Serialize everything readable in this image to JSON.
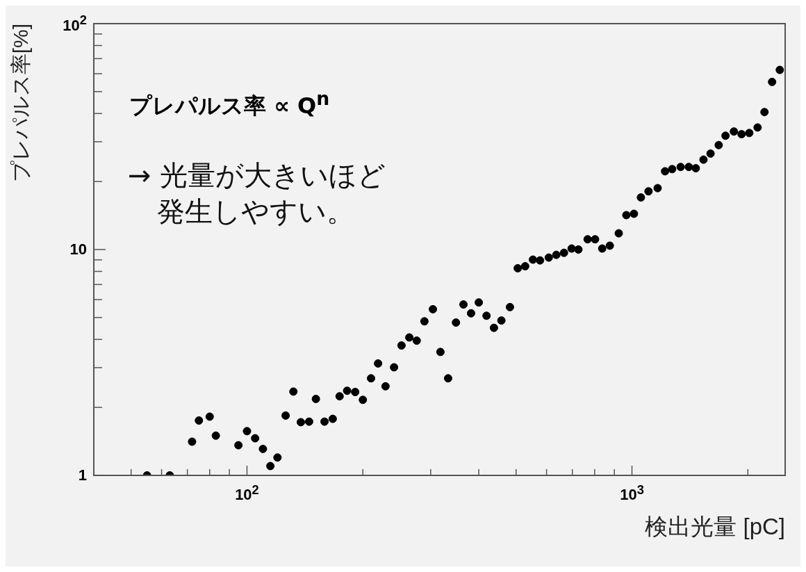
{
  "chart_data": {
    "type": "scatter",
    "xlabel": "検出光量 [pC]",
    "ylabel": "プレパルス率[%]",
    "annotations": [
      "プレパルス率 ∝ Q$^{n}$",
      "→ 光量が大きいほど発生しやすい。"
    ],
    "log": "xy",
    "grid": false,
    "legend": false,
    "marker": "circle",
    "xlim": [
      40,
      2500
    ],
    "ylim": [
      1,
      100
    ],
    "xticks": [
      {
        "value": 50,
        "label": null
      },
      {
        "value": 60,
        "label": null
      },
      {
        "value": 70,
        "label": null
      },
      {
        "value": 80,
        "label": null
      },
      {
        "value": 90,
        "label": null
      },
      {
        "value": 100,
        "label": "10$^{2}$"
      },
      {
        "value": 200,
        "label": null
      },
      {
        "value": 300,
        "label": null
      },
      {
        "value": 400,
        "label": null
      },
      {
        "value": 500,
        "label": null
      },
      {
        "value": 600,
        "label": null
      },
      {
        "value": 700,
        "label": null
      },
      {
        "value": 800,
        "label": null
      },
      {
        "value": 900,
        "label": null
      },
      {
        "value": 1000,
        "label": "10$^{3}$"
      },
      {
        "value": 2000,
        "label": null
      }
    ],
    "yticks": [
      1,
      {
        "value": 2,
        "label": null
      },
      {
        "value": 3,
        "label": null
      },
      {
        "value": 4,
        "label": null
      },
      {
        "value": 5,
        "label": null
      },
      {
        "value": 6,
        "label": null
      },
      {
        "value": 7,
        "label": null
      },
      {
        "value": 8,
        "label": null
      },
      {
        "value": 9,
        "label": null
      },
      10,
      {
        "value": 20,
        "label": null
      },
      {
        "value": 30,
        "label": null
      },
      {
        "value": 40,
        "label": null
      },
      {
        "value": 50,
        "label": null
      },
      {
        "value": 60,
        "label": null
      },
      {
        "value": 70,
        "label": null
      },
      {
        "value": 80,
        "label": null
      },
      {
        "value": 90,
        "label": null
      },
      {
        "value": 100,
        "label": "10$^{2}$"
      }
    ],
    "series": [
      {
        "color": "#000000",
        "x": [
          55,
          63,
          72,
          75,
          80,
          83,
          95,
          100,
          105,
          110,
          115,
          120,
          126,
          132,
          138,
          145,
          151,
          159,
          167,
          174,
          182,
          191,
          200,
          210,
          219,
          229,
          241,
          252,
          264,
          276,
          289,
          304,
          318,
          333,
          349,
          365,
          382,
          400,
          419,
          438,
          458,
          482,
          505,
          528,
          553,
          577,
          608,
          636,
          666,
          697,
          726,
          767,
          802,
          837,
          876,
          924,
          967,
          1012,
          1055,
          1104,
          1166,
          1219,
          1272,
          1338,
          1405,
          1465,
          1534,
          1600,
          1680,
          1750,
          1840,
          1926,
          2017,
          2120,
          2209,
          2312,
          2421
        ],
        "values": [
          1.0,
          1.0,
          1.41,
          1.75,
          1.82,
          1.5,
          1.36,
          1.57,
          1.46,
          1.31,
          1.1,
          1.2,
          1.84,
          2.35,
          1.72,
          1.73,
          2.18,
          1.73,
          1.78,
          2.24,
          2.37,
          2.34,
          2.16,
          2.69,
          3.13,
          2.48,
          3.01,
          3.76,
          4.08,
          3.95,
          4.81,
          5.44,
          3.52,
          2.69,
          4.75,
          5.71,
          5.22,
          5.83,
          5.09,
          4.5,
          4.85,
          5.56,
          8.26,
          8.43,
          9.02,
          8.95,
          9.21,
          9.47,
          9.67,
          10.1,
          10.0,
          11.1,
          11.1,
          10.1,
          10.4,
          11.8,
          14.2,
          14.4,
          17.0,
          18.1,
          18.7,
          22.2,
          22.7,
          23.2,
          23.2,
          22.9,
          25.0,
          26.6,
          29.0,
          31.9,
          33.3,
          32.4,
          32.8,
          34.7,
          40.6,
          55.2,
          62.4
        ]
      }
    ]
  }
}
